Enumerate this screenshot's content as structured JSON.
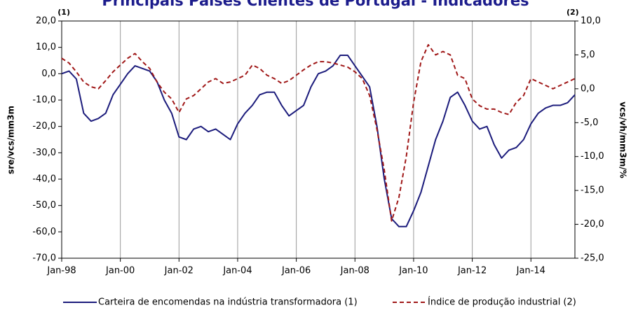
{
  "chart_data": {
    "type": "line",
    "title": "Principais Países Clientes de Portugal - Indicadores",
    "annotations": [
      "(1)",
      "(2)"
    ],
    "ylabel": "sre/vcs/mm3m",
    "y2label": "vcs/vh/mm3m/%",
    "categories": [
      "Jan-98",
      null,
      null,
      null,
      null,
      null,
      null,
      null,
      "Jan-00",
      null,
      null,
      null,
      null,
      null,
      null,
      null,
      "Jan-02",
      null,
      null,
      null,
      null,
      null,
      null,
      null,
      "Jan-04",
      null,
      null,
      null,
      null,
      null,
      null,
      null,
      "Jan-06",
      null,
      null,
      null,
      null,
      null,
      null,
      null,
      "Jan-08",
      null,
      null,
      null,
      null,
      null,
      null,
      null,
      "Jan-10",
      null,
      null,
      null,
      null,
      null,
      null,
      null,
      "Jan-12",
      null,
      null,
      null,
      null,
      null,
      null,
      null,
      "Jan-14",
      null,
      null,
      null,
      null,
      null,
      null
    ],
    "series": [
      {
        "name": "Carteira de encomendas na indústria transformadora (1)",
        "color": "#1c1c7c",
        "style": "solid",
        "values": [
          0,
          1,
          -2,
          -15,
          -18,
          -17,
          -15,
          -8,
          -4,
          0,
          3,
          2,
          1,
          -3,
          -10,
          -15,
          -24,
          -25,
          -21,
          -20,
          -22,
          -21,
          -23,
          -25,
          -19,
          -15,
          -12,
          -8,
          -7,
          -7,
          -12,
          -16,
          -14,
          -12,
          -5,
          0,
          1,
          3,
          7,
          7,
          3,
          -1,
          -5,
          -20,
          -40,
          -55,
          -58,
          -58,
          -52,
          -45,
          -35,
          -25,
          -18,
          -9,
          -7,
          -12,
          -18,
          -21,
          -20,
          -27,
          -32,
          -29,
          -28,
          -25,
          -19,
          -15,
          -13,
          -12,
          -12,
          -11,
          -8
        ]
      },
      {
        "name": "Índice de produção industrial (2)",
        "color": "#a01818",
        "style": "dashed",
        "axis": "y2",
        "values": [
          4.5,
          3.8,
          2.5,
          1.0,
          0.3,
          0.0,
          1.2,
          2.5,
          3.5,
          4.5,
          5.2,
          4.0,
          3.0,
          1.0,
          -0.5,
          -1.5,
          -3.5,
          -1.5,
          -1.0,
          0.0,
          1.0,
          1.5,
          0.8,
          1.0,
          1.5,
          2.0,
          3.5,
          3.0,
          2.0,
          1.5,
          0.8,
          1.2,
          2.0,
          2.8,
          3.5,
          4.0,
          4.0,
          3.8,
          3.5,
          3.2,
          2.5,
          1.5,
          -1.0,
          -6.0,
          -12.0,
          -19.5,
          -16.0,
          -10.0,
          -2.0,
          4.0,
          6.5,
          5.0,
          5.5,
          5.0,
          2.0,
          1.5,
          -1.5,
          -2.5,
          -3.0,
          -3.0,
          -3.5,
          -3.8,
          -2.0,
          -1.0,
          1.5,
          1.0,
          0.5,
          0.0,
          0.5,
          1.0,
          1.5
        ]
      }
    ],
    "ylim": [
      -70,
      20
    ],
    "yticks": [
      {
        "value": 20,
        "label": "20,0"
      },
      {
        "value": 10,
        "label": "10,0"
      },
      {
        "value": 0,
        "label": "0,0"
      },
      {
        "value": -10,
        "label": "-10,0"
      },
      {
        "value": -20,
        "label": "-20,0"
      },
      {
        "value": -30,
        "label": "-30,0"
      },
      {
        "value": -40,
        "label": "-40,0"
      },
      {
        "value": -50,
        "label": "-50,0"
      },
      {
        "value": -60,
        "label": "-60,0"
      },
      {
        "value": -70,
        "label": "-70,0"
      }
    ],
    "y2lim": [
      -25,
      10
    ],
    "y2ticks": [
      {
        "value": 10,
        "label": "10,0"
      },
      {
        "value": 5,
        "label": "5,0"
      },
      {
        "value": 0,
        "label": "0,0"
      },
      {
        "value": -5,
        "label": "-5,0"
      },
      {
        "value": -10,
        "label": "-10,0"
      },
      {
        "value": -15,
        "label": "-15,0"
      },
      {
        "value": -20,
        "label": "-20,0"
      },
      {
        "value": -25,
        "label": "-25,0"
      }
    ],
    "grid": true,
    "legend": "bottom"
  }
}
